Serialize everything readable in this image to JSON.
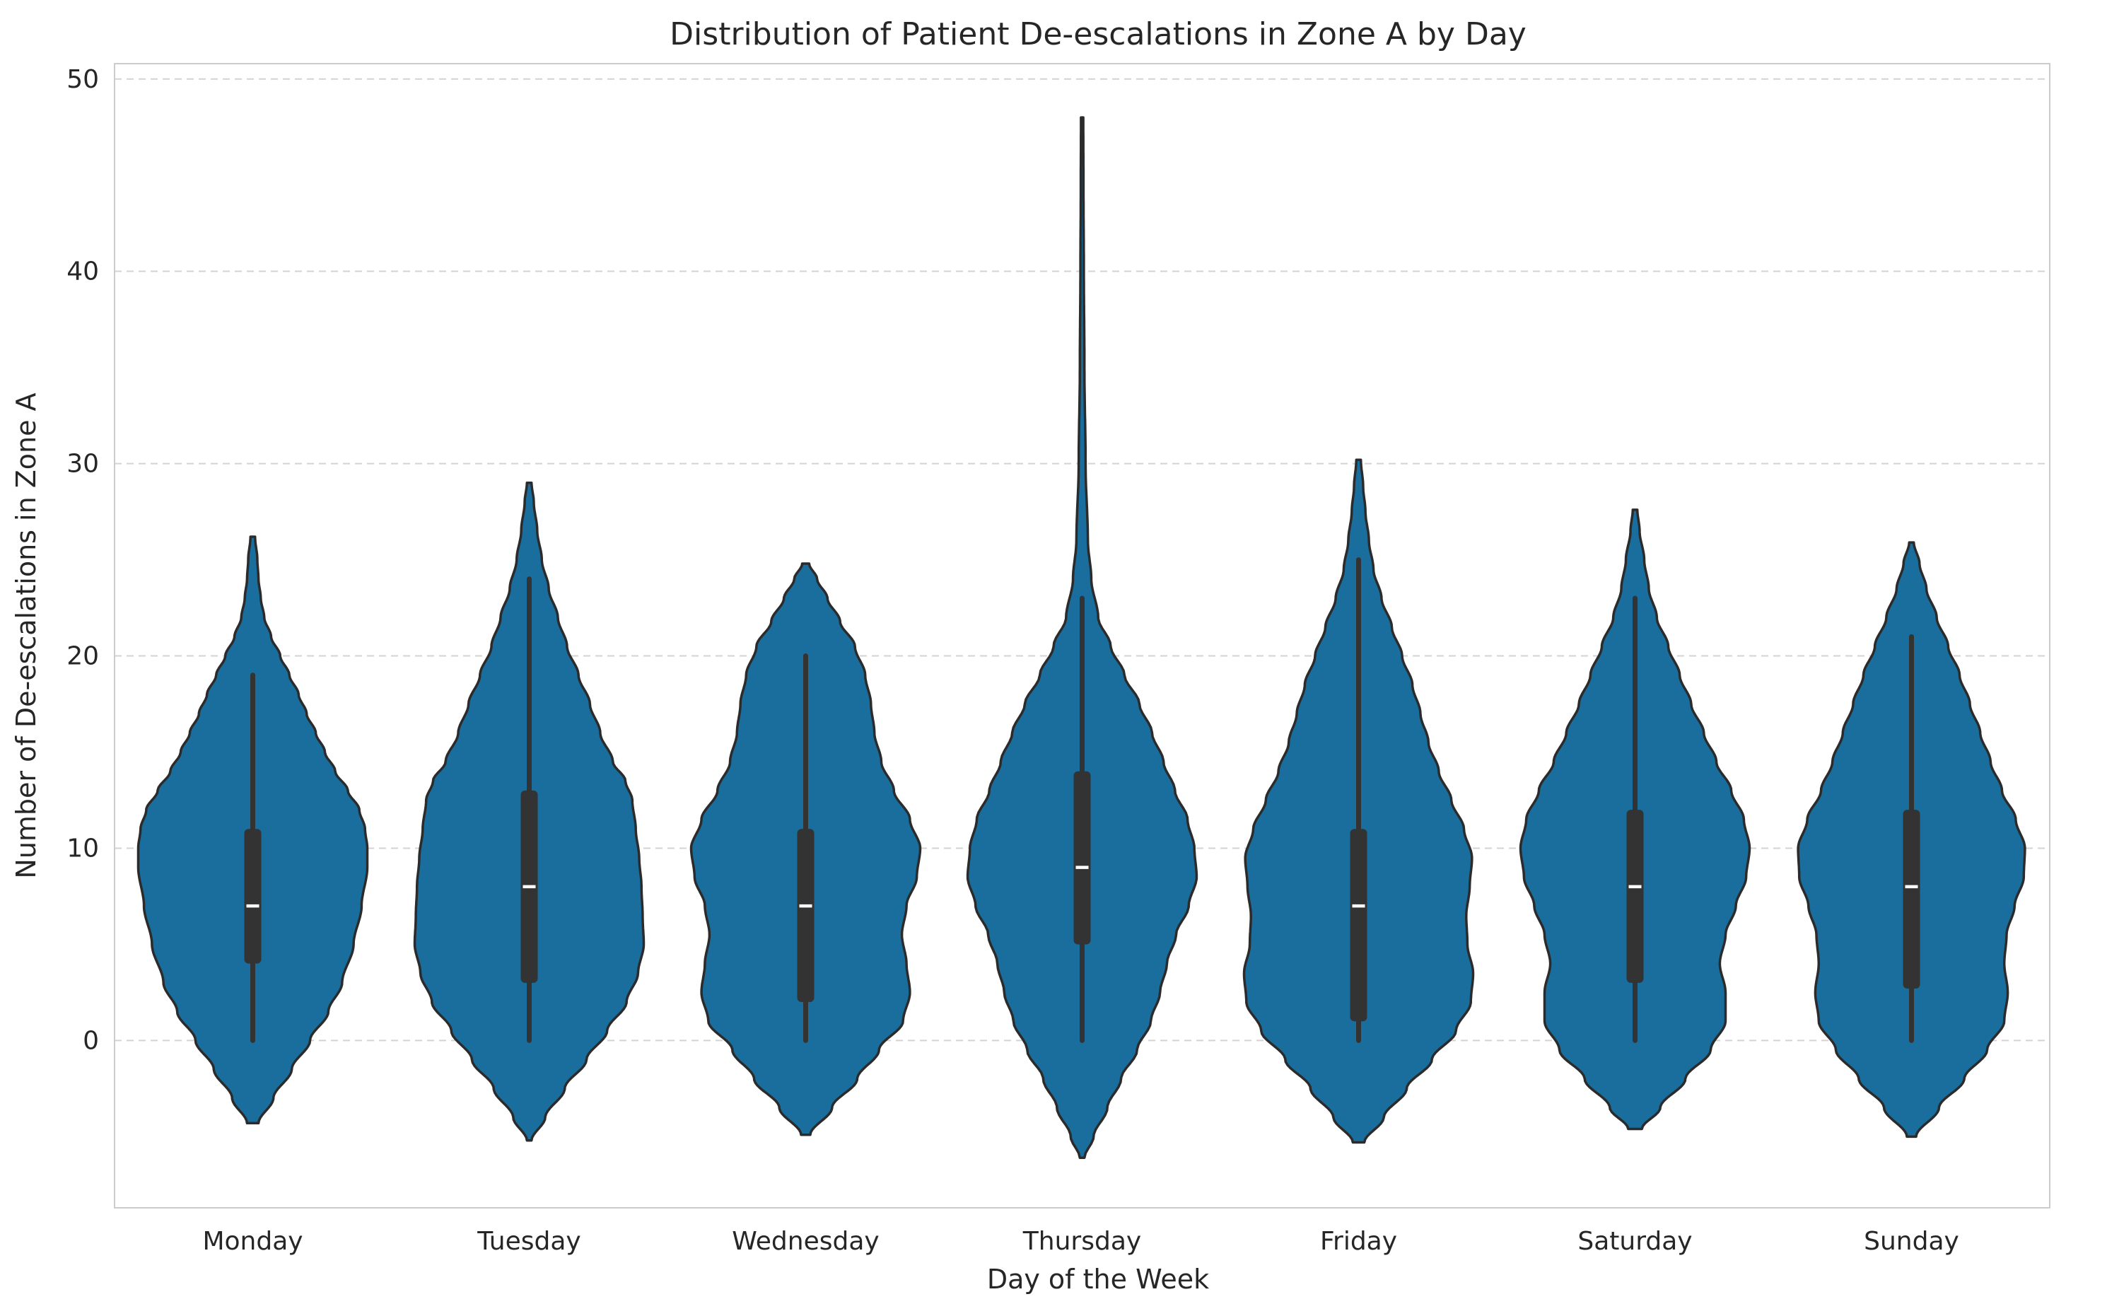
{
  "chart_data": {
    "type": "violin",
    "title": "Distribution of Patient De-escalations in Zone A by Day",
    "xlabel": "Day of the Week",
    "ylabel": "Number of De-escalations in Zone A",
    "ylim": [
      -8.7,
      50.8
    ],
    "yticks": [
      0,
      10,
      20,
      30,
      40,
      50
    ],
    "categories": [
      "Monday",
      "Tuesday",
      "Wednesday",
      "Thursday",
      "Friday",
      "Saturday",
      "Sunday"
    ],
    "grid": "horizontal dashed",
    "color": "#1a6e9e",
    "summary": [
      {
        "min": 0,
        "q1": 4,
        "median": 7,
        "q3": 11,
        "max": 19,
        "kde_low": -4.3,
        "kde_high": 26.2
      },
      {
        "min": 0,
        "q1": 3,
        "median": 8,
        "q3": 13,
        "max": 24,
        "kde_low": -5.2,
        "kde_high": 29.0
      },
      {
        "min": 0,
        "q1": 2,
        "median": 7,
        "q3": 11,
        "max": 20,
        "kde_low": -4.9,
        "kde_high": 24.8
      },
      {
        "min": 0,
        "q1": 5,
        "median": 9,
        "q3": 14,
        "max": 23,
        "kde_low": -6.1,
        "kde_high": 48.0
      },
      {
        "min": 0,
        "q1": 1,
        "median": 7,
        "q3": 11,
        "max": 25,
        "kde_low": -5.3,
        "kde_high": 30.2
      },
      {
        "min": 0,
        "q1": 3,
        "median": 8,
        "q3": 12,
        "max": 23,
        "kde_low": -4.6,
        "kde_high": 27.6
      },
      {
        "min": 0,
        "q1": 2.7,
        "median": 8,
        "q3": 12,
        "max": 21,
        "kde_low": -5.0,
        "kde_high": 25.9
      }
    ],
    "density_profiles": [
      [
        [
          -4.3,
          0.05
        ],
        [
          -3,
          0.18
        ],
        [
          -1.5,
          0.34
        ],
        [
          0,
          0.5
        ],
        [
          1.5,
          0.66
        ],
        [
          3,
          0.78
        ],
        [
          5,
          0.88
        ],
        [
          7,
          0.95
        ],
        [
          9,
          1.0
        ],
        [
          10,
          1.0
        ],
        [
          11,
          0.98
        ],
        [
          12,
          0.93
        ],
        [
          13,
          0.83
        ],
        [
          14,
          0.72
        ],
        [
          15,
          0.63
        ],
        [
          16,
          0.55
        ],
        [
          17,
          0.47
        ],
        [
          18,
          0.4
        ],
        [
          19,
          0.32
        ],
        [
          20,
          0.24
        ],
        [
          21,
          0.16
        ],
        [
          22,
          0.1
        ],
        [
          23,
          0.07
        ],
        [
          24,
          0.05
        ],
        [
          25,
          0.04
        ],
        [
          26.2,
          0.02
        ]
      ],
      [
        [
          -5.2,
          0.02
        ],
        [
          -4,
          0.14
        ],
        [
          -2.5,
          0.31
        ],
        [
          -1,
          0.5
        ],
        [
          0.5,
          0.68
        ],
        [
          2,
          0.85
        ],
        [
          3.5,
          0.95
        ],
        [
          5,
          1.0
        ],
        [
          6.5,
          0.99
        ],
        [
          8,
          0.98
        ],
        [
          9.5,
          0.96
        ],
        [
          11,
          0.93
        ],
        [
          12.5,
          0.9
        ],
        [
          13.5,
          0.84
        ],
        [
          14.5,
          0.73
        ],
        [
          16,
          0.62
        ],
        [
          17.5,
          0.53
        ],
        [
          19,
          0.43
        ],
        [
          20.5,
          0.33
        ],
        [
          22,
          0.25
        ],
        [
          23.5,
          0.17
        ],
        [
          25,
          0.11
        ],
        [
          26.5,
          0.07
        ],
        [
          28,
          0.04
        ],
        [
          29,
          0.02
        ]
      ],
      [
        [
          -4.9,
          0.04
        ],
        [
          -3.5,
          0.23
        ],
        [
          -2,
          0.45
        ],
        [
          -0.5,
          0.64
        ],
        [
          1,
          0.85
        ],
        [
          2.5,
          0.91
        ],
        [
          4,
          0.88
        ],
        [
          5.5,
          0.84
        ],
        [
          7,
          0.88
        ],
        [
          8.5,
          0.97
        ],
        [
          10,
          1.0
        ],
        [
          11.5,
          0.91
        ],
        [
          13,
          0.77
        ],
        [
          14.5,
          0.66
        ],
        [
          16,
          0.6
        ],
        [
          17.5,
          0.57
        ],
        [
          19,
          0.52
        ],
        [
          20.5,
          0.43
        ],
        [
          21.8,
          0.3
        ],
        [
          23,
          0.19
        ],
        [
          24,
          0.1
        ],
        [
          24.8,
          0.03
        ]
      ],
      [
        [
          -6.1,
          0.02
        ],
        [
          -5,
          0.1
        ],
        [
          -3.5,
          0.22
        ],
        [
          -2,
          0.34
        ],
        [
          -0.5,
          0.48
        ],
        [
          1,
          0.6
        ],
        [
          2.5,
          0.68
        ],
        [
          4,
          0.74
        ],
        [
          5.5,
          0.82
        ],
        [
          7,
          0.93
        ],
        [
          8.5,
          1.0
        ],
        [
          10,
          0.98
        ],
        [
          11.5,
          0.92
        ],
        [
          13,
          0.81
        ],
        [
          14.5,
          0.71
        ],
        [
          16,
          0.61
        ],
        [
          17.5,
          0.5
        ],
        [
          19,
          0.37
        ],
        [
          20.5,
          0.25
        ],
        [
          22,
          0.14
        ],
        [
          24,
          0.08
        ],
        [
          26,
          0.05
        ],
        [
          30,
          0.03
        ],
        [
          35,
          0.02
        ],
        [
          40,
          0.015
        ],
        [
          44,
          0.012
        ],
        [
          48,
          0.01
        ]
      ],
      [
        [
          -5.3,
          0.05
        ],
        [
          -4,
          0.22
        ],
        [
          -2.5,
          0.42
        ],
        [
          -1,
          0.64
        ],
        [
          0.5,
          0.85
        ],
        [
          2,
          0.98
        ],
        [
          3.5,
          1.0
        ],
        [
          5,
          0.95
        ],
        [
          6.5,
          0.94
        ],
        [
          8,
          0.97
        ],
        [
          9.5,
          0.99
        ],
        [
          11,
          0.92
        ],
        [
          12.5,
          0.81
        ],
        [
          14,
          0.7
        ],
        [
          15.5,
          0.61
        ],
        [
          17,
          0.54
        ],
        [
          18.5,
          0.47
        ],
        [
          20,
          0.38
        ],
        [
          21.5,
          0.29
        ],
        [
          23,
          0.2
        ],
        [
          24.5,
          0.13
        ],
        [
          26,
          0.09
        ],
        [
          27.5,
          0.06
        ],
        [
          28.8,
          0.04
        ],
        [
          30.2,
          0.02
        ]
      ],
      [
        [
          -4.6,
          0.06
        ],
        [
          -3.5,
          0.22
        ],
        [
          -2,
          0.44
        ],
        [
          -0.5,
          0.66
        ],
        [
          1,
          0.79
        ],
        [
          2.5,
          0.79
        ],
        [
          4,
          0.74
        ],
        [
          5.5,
          0.79
        ],
        [
          7,
          0.88
        ],
        [
          8.5,
          0.97
        ],
        [
          10,
          1.0
        ],
        [
          11.5,
          0.95
        ],
        [
          13,
          0.84
        ],
        [
          14.5,
          0.71
        ],
        [
          16,
          0.6
        ],
        [
          17.5,
          0.49
        ],
        [
          19,
          0.39
        ],
        [
          20.5,
          0.29
        ],
        [
          22,
          0.19
        ],
        [
          23.5,
          0.12
        ],
        [
          25,
          0.08
        ],
        [
          26.5,
          0.04
        ],
        [
          27.6,
          0.02
        ]
      ],
      [
        [
          -5.0,
          0.04
        ],
        [
          -3.5,
          0.24
        ],
        [
          -2,
          0.46
        ],
        [
          -0.5,
          0.66
        ],
        [
          1,
          0.81
        ],
        [
          2.5,
          0.84
        ],
        [
          4,
          0.81
        ],
        [
          5.5,
          0.83
        ],
        [
          7,
          0.9
        ],
        [
          8.5,
          0.98
        ],
        [
          10,
          0.99
        ],
        [
          11.5,
          0.91
        ],
        [
          13,
          0.79
        ],
        [
          14.5,
          0.69
        ],
        [
          16,
          0.6
        ],
        [
          17.5,
          0.51
        ],
        [
          19,
          0.42
        ],
        [
          20.5,
          0.32
        ],
        [
          22,
          0.22
        ],
        [
          23.5,
          0.13
        ],
        [
          24.8,
          0.07
        ],
        [
          25.9,
          0.02
        ]
      ]
    ]
  }
}
